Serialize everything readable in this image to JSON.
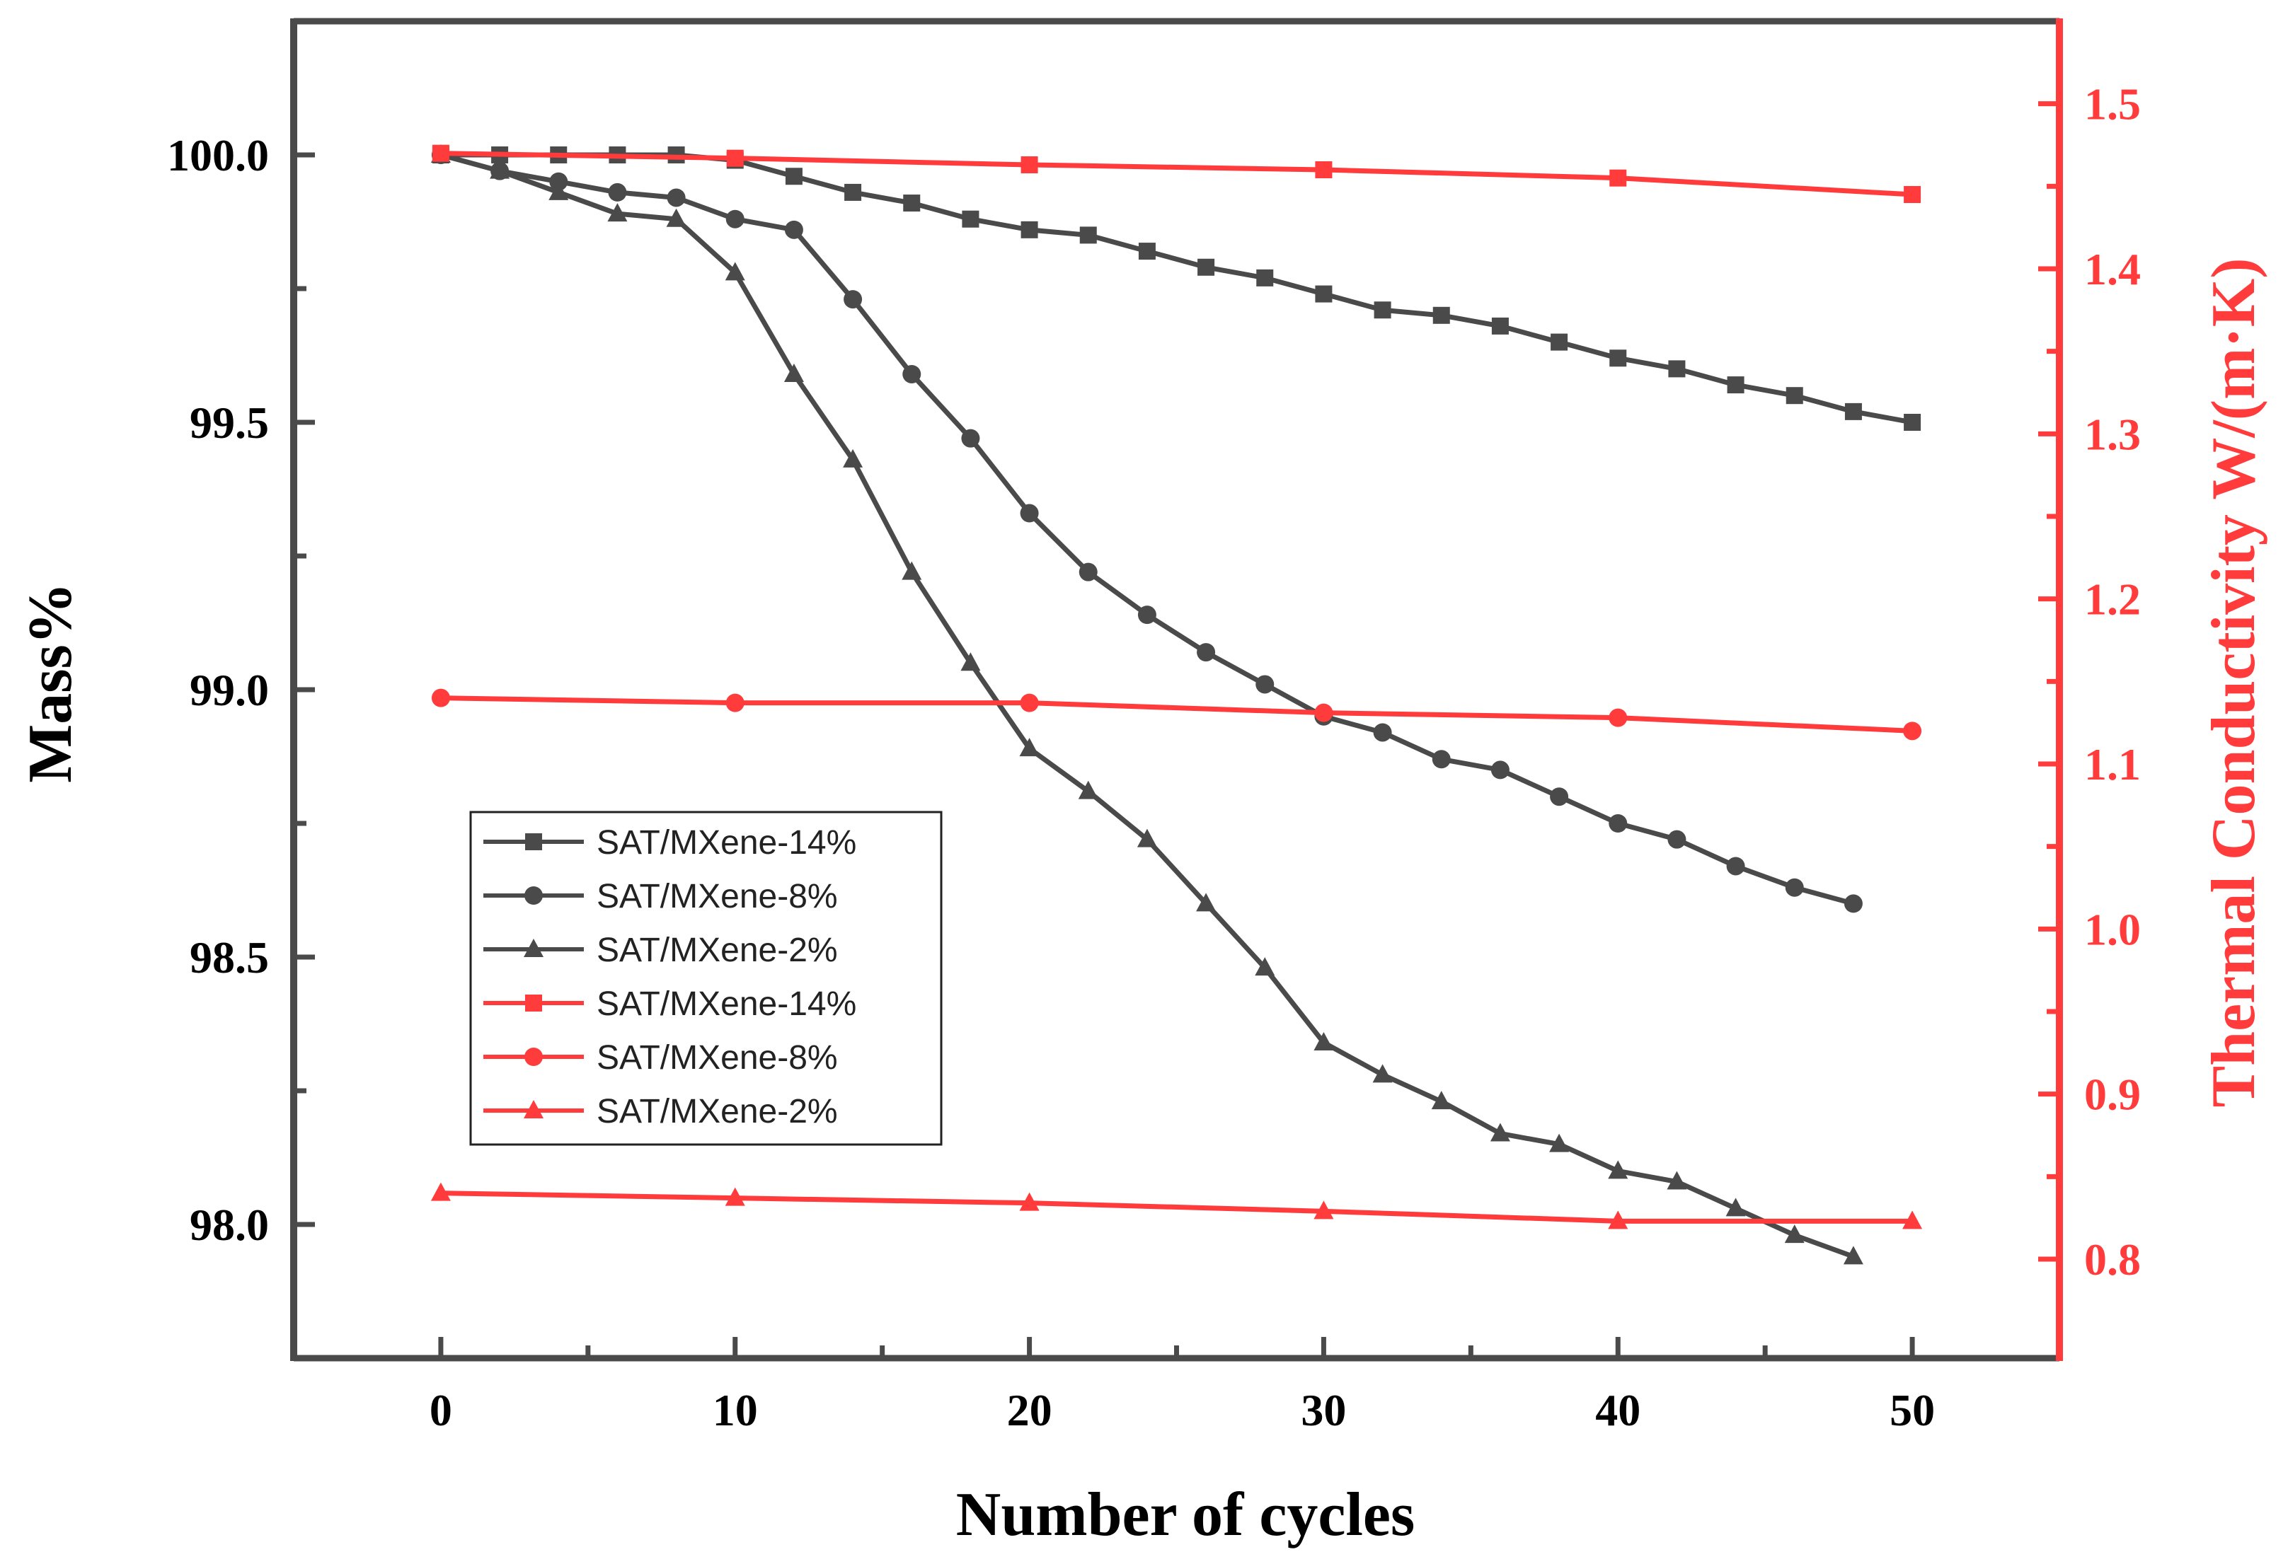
{
  "chart_data": {
    "type": "line",
    "title": "",
    "xlabel": "Number of cycles",
    "ylabel_left": "Mass%",
    "ylabel_right": "Thermal Conductivity W/(m·K)",
    "xlim": [
      -5,
      55
    ],
    "ylim_left": [
      97.75,
      100.25
    ],
    "ylim_right": [
      0.74,
      1.55
    ],
    "x_ticks": [
      "0",
      "10",
      "20",
      "30",
      "40",
      "50"
    ],
    "y_left_ticks": [
      "98.0",
      "98.5",
      "99.0",
      "99.5",
      "100.0"
    ],
    "y_right_ticks": [
      "0.8",
      "0.9",
      "1.0",
      "1.1",
      "1.2",
      "1.3",
      "1.4",
      "1.5"
    ],
    "grid": false,
    "legend_position": "middle-left",
    "colors": {
      "mass": "#4a4a4a",
      "conductivity": "#ff3b3b",
      "left_axis": "#4a4a4a",
      "right_axis": "#ff3b3b"
    },
    "series": [
      {
        "name": "SAT/MXene-14%",
        "axis": "left",
        "marker": "square",
        "color": "#4a4a4a",
        "x": [
          0,
          2,
          4,
          6,
          8,
          10,
          12,
          14,
          16,
          18,
          20,
          22,
          24,
          26,
          28,
          30,
          32,
          34,
          36,
          38,
          40,
          42,
          44,
          46,
          48,
          50
        ],
        "y": [
          100.0,
          100.0,
          100.0,
          100.0,
          100.0,
          99.99,
          99.96,
          99.93,
          99.91,
          99.88,
          99.86,
          99.85,
          99.82,
          99.79,
          99.77,
          99.74,
          99.71,
          99.7,
          99.68,
          99.65,
          99.62,
          99.6,
          99.57,
          99.55,
          99.52,
          99.5
        ]
      },
      {
        "name": "SAT/MXene-8%",
        "axis": "left",
        "marker": "circle",
        "color": "#4a4a4a",
        "x": [
          0,
          2,
          4,
          6,
          8,
          10,
          12,
          14,
          16,
          18,
          20,
          22,
          24,
          26,
          28,
          30,
          32,
          34,
          36,
          38,
          40,
          42,
          44,
          46,
          48
        ],
        "y": [
          100.0,
          99.97,
          99.95,
          99.93,
          99.92,
          99.88,
          99.86,
          99.73,
          99.59,
          99.47,
          99.33,
          99.22,
          99.14,
          99.07,
          99.01,
          98.95,
          98.92,
          98.87,
          98.85,
          98.8,
          98.75,
          98.72,
          98.67,
          98.63,
          98.6
        ]
      },
      {
        "name": "SAT/MXene-2%",
        "axis": "left",
        "marker": "triangle",
        "color": "#4a4a4a",
        "x": [
          0,
          2,
          4,
          6,
          8,
          10,
          12,
          14,
          16,
          18,
          20,
          22,
          24,
          26,
          28,
          30,
          32,
          34,
          36,
          38,
          40,
          42,
          44,
          46,
          48
        ],
        "y": [
          100.0,
          99.97,
          99.93,
          99.89,
          99.88,
          99.78,
          99.59,
          99.43,
          99.22,
          99.05,
          98.89,
          98.81,
          98.72,
          98.6,
          98.48,
          98.34,
          98.28,
          98.23,
          98.17,
          98.15,
          98.1,
          98.08,
          98.03,
          97.98,
          97.94
        ]
      },
      {
        "name": "SAT/MXene-14%",
        "axis": "right",
        "marker": "square",
        "color": "#ff3b3b",
        "x": [
          0,
          10,
          20,
          30,
          40,
          50
        ],
        "y": [
          1.47,
          1.467,
          1.463,
          1.46,
          1.455,
          1.445
        ]
      },
      {
        "name": "SAT/MXene-8%",
        "axis": "right",
        "marker": "circle",
        "color": "#ff3b3b",
        "x": [
          0,
          10,
          20,
          30,
          40,
          50
        ],
        "y": [
          1.14,
          1.137,
          1.137,
          1.131,
          1.128,
          1.12
        ]
      },
      {
        "name": "SAT/MXene-2%",
        "axis": "right",
        "marker": "triangle",
        "color": "#ff3b3b",
        "x": [
          0,
          10,
          20,
          30,
          40,
          50
        ],
        "y": [
          0.84,
          0.837,
          0.834,
          0.829,
          0.823,
          0.823
        ]
      }
    ]
  }
}
